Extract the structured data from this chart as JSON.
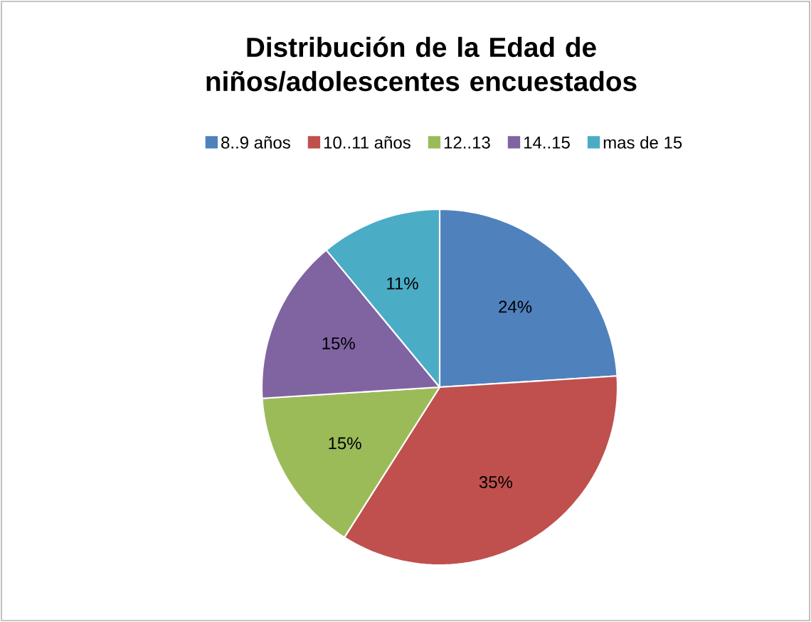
{
  "chart_data": {
    "type": "pie",
    "title": "Distribución de la Edad de\nniños/adolescentes encuestados",
    "categories": [
      "8..9 años",
      "10..11 años",
      "12..13",
      "14..15",
      "mas de 15"
    ],
    "values": [
      24,
      35,
      15,
      15,
      11
    ],
    "value_labels": [
      "24%",
      "35%",
      "15%",
      "15%",
      "11%"
    ],
    "colors": [
      "#4f81bd",
      "#c0504d",
      "#9bbb59",
      "#8064a2",
      "#4bacc6"
    ],
    "legend": "top"
  }
}
